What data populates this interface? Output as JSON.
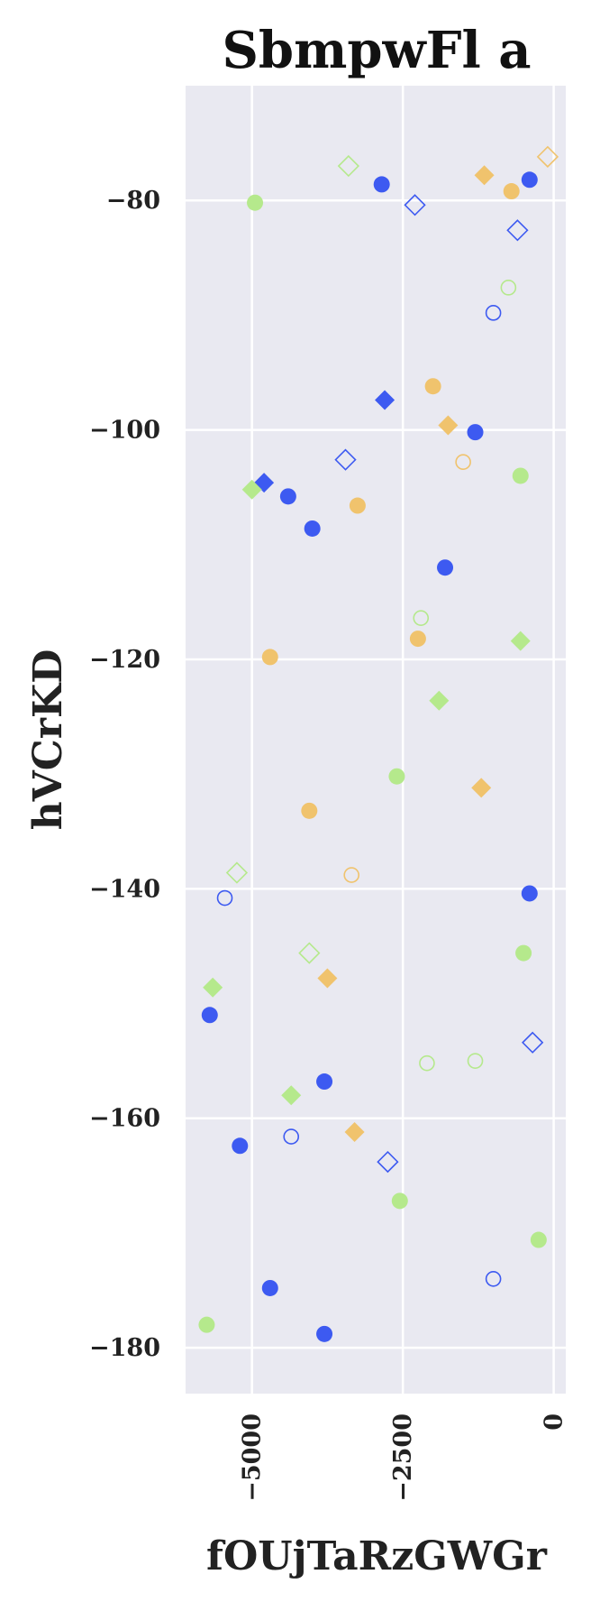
{
  "chart_data": {
    "type": "scatter",
    "title": "SbmpwFl a",
    "xlabel": "fOUjTaRzGWGr",
    "ylabel": "hVCrKD",
    "xlim": [
      -6100,
      200
    ],
    "ylim": [
      -184,
      -70
    ],
    "xticks": [
      -5000,
      -2500,
      0
    ],
    "xtick_labels": [
      "−5000",
      "−2500",
      "0"
    ],
    "yticks": [
      -80,
      -100,
      -120,
      -140,
      -160,
      -180
    ],
    "ytick_labels": [
      "−80",
      "−100",
      "−120",
      "−140",
      "−160",
      "−180"
    ],
    "grid": true,
    "background": "#e9e9f1",
    "colors": {
      "blue": "#3d5af1",
      "orange": "#f0c36d",
      "green": "#b5e98c"
    },
    "series": [
      {
        "color": "blue",
        "marker": "circle",
        "filled": true,
        "points": [
          [
            -2850,
            -78.6
          ],
          [
            -400,
            -78.2
          ],
          [
            -1300,
            -100.2
          ],
          [
            -4400,
            -105.8
          ],
          [
            -4000,
            -108.6
          ],
          [
            -1800,
            -112.0
          ],
          [
            -400,
            -140.4
          ],
          [
            -5700,
            -151.0
          ],
          [
            -3800,
            -156.8
          ],
          [
            -5200,
            -162.4
          ],
          [
            -4700,
            -174.8
          ],
          [
            -3800,
            -178.8
          ]
        ]
      },
      {
        "color": "blue",
        "marker": "circle",
        "filled": false,
        "points": [
          [
            -1000,
            -89.8
          ],
          [
            -5450,
            -140.8
          ],
          [
            -4350,
            -161.6
          ],
          [
            -1000,
            -174.0
          ]
        ]
      },
      {
        "color": "blue",
        "marker": "diamond",
        "filled": true,
        "points": [
          [
            -2800,
            -97.4
          ],
          [
            -4800,
            -104.6
          ]
        ]
      },
      {
        "color": "blue",
        "marker": "diamond",
        "filled": false,
        "points": [
          [
            -2300,
            -80.4
          ],
          [
            -600,
            -82.6
          ],
          [
            -3450,
            -102.6
          ],
          [
            -2750,
            -163.8
          ],
          [
            -350,
            -153.4
          ]
        ]
      },
      {
        "color": "orange",
        "marker": "circle",
        "filled": true,
        "points": [
          [
            -700,
            -79.2
          ],
          [
            -2000,
            -96.2
          ],
          [
            -3250,
            -106.6
          ],
          [
            -4700,
            -119.8
          ],
          [
            -2250,
            -118.2
          ],
          [
            -4050,
            -133.2
          ]
        ]
      },
      {
        "color": "orange",
        "marker": "circle",
        "filled": false,
        "points": [
          [
            -1500,
            -102.8
          ],
          [
            -3350,
            -138.8
          ]
        ]
      },
      {
        "color": "orange",
        "marker": "diamond",
        "filled": true,
        "points": [
          [
            -1150,
            -77.8
          ],
          [
            -1750,
            -99.6
          ],
          [
            -1200,
            -131.2
          ],
          [
            -3750,
            -147.8
          ],
          [
            -3300,
            -161.2
          ]
        ]
      },
      {
        "color": "orange",
        "marker": "diamond",
        "filled": false,
        "points": [
          [
            -100,
            -76.2
          ]
        ]
      },
      {
        "color": "green",
        "marker": "circle",
        "filled": true,
        "points": [
          [
            -4950,
            -80.2
          ],
          [
            -550,
            -104.0
          ],
          [
            -2600,
            -130.2
          ],
          [
            -500,
            -145.6
          ],
          [
            -2550,
            -167.2
          ],
          [
            -250,
            -170.6
          ],
          [
            -5750,
            -178.0
          ]
        ]
      },
      {
        "color": "green",
        "marker": "circle",
        "filled": false,
        "points": [
          [
            -750,
            -87.6
          ],
          [
            -2200,
            -116.4
          ],
          [
            -2100,
            -155.2
          ],
          [
            -1300,
            -155.0
          ]
        ]
      },
      {
        "color": "green",
        "marker": "diamond",
        "filled": true,
        "points": [
          [
            -5000,
            -105.2
          ],
          [
            -550,
            -118.4
          ],
          [
            -1900,
            -123.6
          ],
          [
            -5650,
            -148.6
          ],
          [
            -4350,
            -158.0
          ]
        ]
      },
      {
        "color": "green",
        "marker": "diamond",
        "filled": false,
        "points": [
          [
            -3400,
            -77.0
          ],
          [
            -5250,
            -138.6
          ],
          [
            -4050,
            -145.6
          ]
        ]
      }
    ]
  }
}
